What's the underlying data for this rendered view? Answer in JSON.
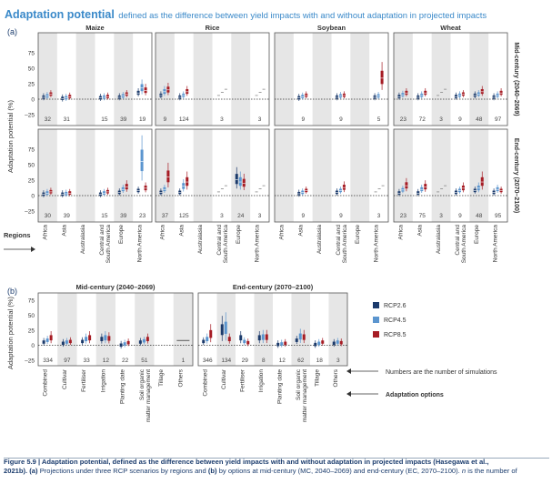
{
  "title_main": "Adaptation potential",
  "title_sub": "defined as the difference between yield impacts with and without adaptation in projected impacts",
  "caption_line1_bold": "Figure 5.9 |  Adaptation potential, defined as the difference between yield impacts with and without adaptation in projected impacts (Hasegawa et al.,",
  "caption_line2_bold": "2021b). (a)",
  "caption_line2_rest": "Projections under three RCP scenarios by regions and",
  "caption_line2_b": "(b)",
  "caption_line2_rest2": "by options at mid-century (MC, 2040–2069) and end-century (EC, 2070–2100).",
  "caption_line2_n": "n",
  "caption_line2_end": "is the number of",
  "colors": {
    "rcp26": "#1b3a6b",
    "rcp45": "#5b95cf",
    "rcp85": "#a61c24",
    "shade": "#e6e6e6",
    "frame": "#555555",
    "heading": "#3a89c9"
  },
  "panel_a": {
    "label": "(a)",
    "crops": [
      "Maize",
      "Rice",
      "Soybean",
      "Wheat"
    ],
    "rows": [
      "Mid-century (2040–2069)",
      "End-century (2070–2100)"
    ],
    "ylabel": "Adaptation potential (%)",
    "yticks": [
      "75",
      "50",
      "25",
      "0",
      "–25"
    ],
    "regions": [
      "Africa",
      "Asia",
      "Australasia",
      "Central and South America",
      "Europe",
      "North America"
    ],
    "regions_label": "Regions",
    "counts": {
      "Maize": [
        [
          "32",
          "31",
          "",
          "15",
          "39",
          "19"
        ],
        [
          "30",
          "39",
          "",
          "15",
          "39",
          "23"
        ]
      ],
      "Rice": [
        [
          "9",
          "124",
          "",
          "3",
          "",
          "3"
        ],
        [
          "37",
          "125",
          "",
          "3",
          "24",
          "3"
        ]
      ],
      "Soybean": [
        [
          "",
          "9",
          "",
          "9",
          "",
          "5"
        ],
        [
          "",
          "9",
          "",
          "9",
          "",
          "3"
        ]
      ],
      "Wheat": [
        [
          "23",
          "72",
          "3",
          "9",
          "48",
          "97"
        ],
        [
          "23",
          "75",
          "3",
          "9",
          "48",
          "95"
        ]
      ]
    }
  },
  "panel_b": {
    "label": "(b)",
    "periods": [
      "Mid-century (2040–2069)",
      "End-century (2070–2100)"
    ],
    "ylabel": "Adaptation potential (%)",
    "yticks": [
      "75",
      "50",
      "25",
      "0",
      "–25"
    ],
    "options": [
      "Combined",
      "Cultivar",
      "Fertiliser",
      "Irrigation",
      "Planting date",
      "Soil organic matter management",
      "Tillage",
      "Others"
    ],
    "counts_mid": [
      "334",
      "97",
      "33",
      "12",
      "22",
      "51",
      "",
      "1"
    ],
    "counts_end": [
      "346",
      "134",
      "29",
      "8",
      "12",
      "62",
      "18",
      "3"
    ],
    "note_counts": "Numbers are the number of simulations",
    "note_options": "Adaptation options"
  },
  "legend": [
    "RCP2.6",
    "RCP4.5",
    "RCP8.5"
  ],
  "chart_data": {
    "type": "box",
    "ylim": [
      -25,
      85
    ],
    "units": "%",
    "panel_a_series_approx_median": {
      "Maize_mid": {
        "Africa": [
          3,
          5,
          8
        ],
        "Asia": [
          1,
          2,
          4
        ],
        "Central and South America": [
          2,
          3,
          4
        ],
        "Europe": [
          3,
          5,
          8
        ],
        "North America": [
          10,
          18,
          14
        ]
      },
      "Maize_end": {
        "Africa": [
          2,
          4,
          6
        ],
        "Asia": [
          2,
          3,
          4
        ],
        "Central and South America": [
          2,
          4,
          6
        ],
        "Europe": [
          5,
          10,
          14
        ],
        "North America": [
          8,
          55,
          12
        ]
      },
      "Rice_mid": {
        "Africa": [
          6,
          12,
          15
        ],
        "Asia": [
          3,
          6,
          12
        ]
      },
      "Rice_end": {
        "Africa": [
          5,
          10,
          30
        ],
        "Asia": [
          5,
          15,
          22
        ],
        "Europe": [
          26,
          22,
          20
        ]
      },
      "Soybean_mid": {
        "Asia": [
          2,
          4,
          6
        ],
        "Central and South America": [
          3,
          5,
          6
        ],
        "North America": [
          3,
          5,
          34
        ]
      },
      "Soybean_end": {
        "Asia": [
          3,
          5,
          8
        ],
        "Central and South America": [
          5,
          8,
          13
        ]
      },
      "Wheat_mid": {
        "Africa": [
          4,
          7,
          10
        ],
        "Asia": [
          3,
          6,
          10
        ],
        "Central and South America": [
          4,
          6,
          8
        ],
        "Europe": [
          6,
          8,
          12
        ],
        "North America": [
          3,
          6,
          10
        ]
      },
      "Wheat_end": {
        "Africa": [
          4,
          9,
          16
        ],
        "Asia": [
          4,
          10,
          14
        ],
        "Central and South America": [
          5,
          8,
          12
        ],
        "Europe": [
          8,
          12,
          22
        ],
        "North America": [
          5,
          10,
          8
        ]
      }
    },
    "panel_b_series_approx_median": {
      "mid": {
        "Combined": [
          5,
          8,
          12
        ],
        "Cultivar": [
          3,
          5,
          6
        ],
        "Fertiliser": [
          6,
          10,
          12
        ],
        "Irrigation": [
          10,
          12,
          11
        ],
        "Planting date": [
          0,
          2,
          4
        ],
        "Soil organic matter management": [
          5,
          7,
          10
        ],
        "Others": [
          8
        ]
      },
      "end": {
        "Combined": [
          6,
          10,
          18
        ],
        "Cultivar": [
          25,
          28,
          10
        ],
        "Fertiliser": [
          12,
          6,
          4
        ],
        "Irrigation": [
          12,
          13,
          13
        ],
        "Planting date": [
          1,
          2,
          3
        ],
        "Soil organic matter management": [
          8,
          14,
          13
        ],
        "Tillage": [
          1,
          3,
          5
        ],
        "Others": [
          3,
          5,
          4
        ]
      }
    }
  }
}
